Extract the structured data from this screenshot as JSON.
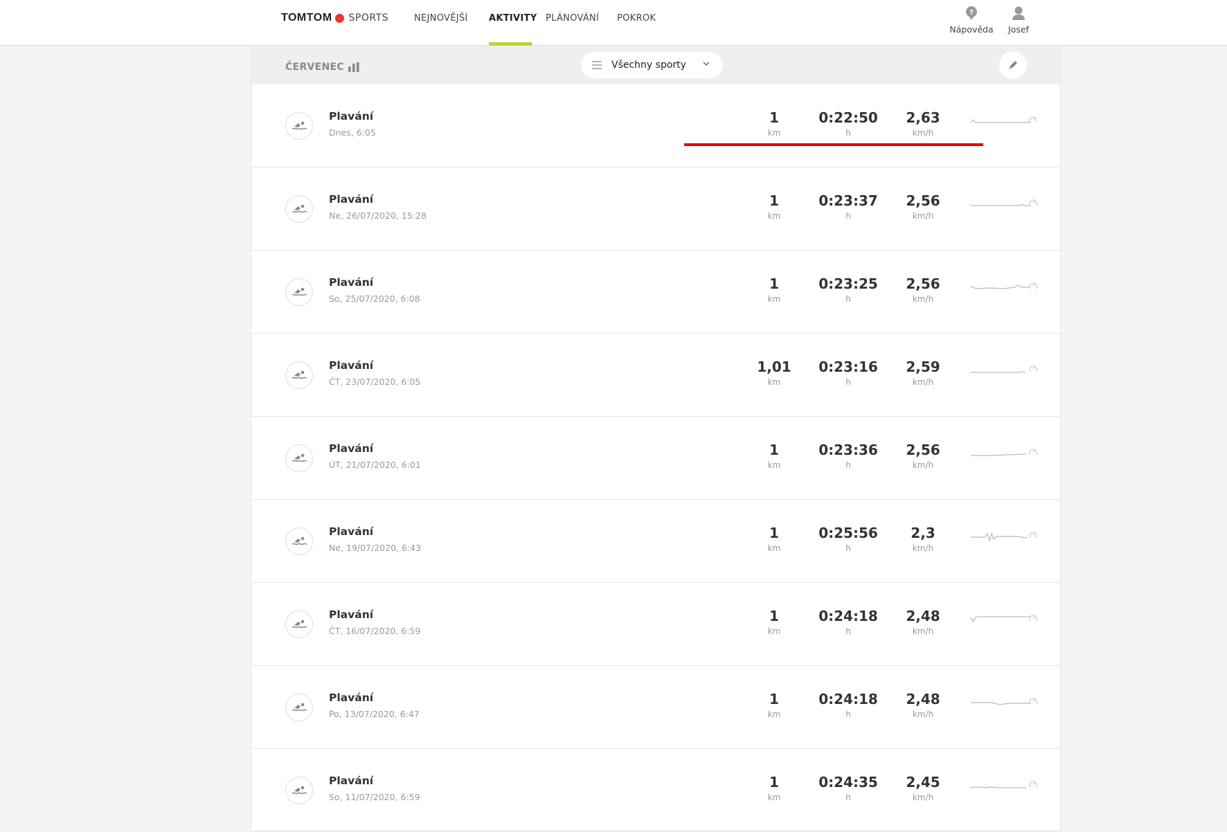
{
  "header": {
    "logo_brand": "TOMTOM",
    "logo_product": "SPORTS",
    "nav": [
      {
        "label": "NEJNOVĚJŠÍ"
      },
      {
        "label": "AKTIVITY",
        "active": true
      },
      {
        "label": "PLÁNOVÁNÍ"
      },
      {
        "label": "POKROK"
      }
    ],
    "help_label": "Nápověda",
    "user_label": "Josef",
    "accent_color": "#b7d432"
  },
  "toolbar": {
    "month": "ČERVENEC",
    "filter": "Všechny sporty"
  },
  "activities": [
    {
      "title": "Plavání",
      "date": "Dnes, 6:05",
      "distance": "1",
      "distance_unit": "km",
      "duration": "0:22:50",
      "duration_unit": "h",
      "speed": "2,63",
      "speed_unit": "km/h",
      "highlighted": true
    },
    {
      "title": "Plavání",
      "date": "Ne, 26/07/2020, 15:28",
      "distance": "1",
      "distance_unit": "km",
      "duration": "0:23:37",
      "duration_unit": "h",
      "speed": "2,56",
      "speed_unit": "km/h"
    },
    {
      "title": "Plavání",
      "date": "So, 25/07/2020, 6:08",
      "distance": "1",
      "distance_unit": "km",
      "duration": "0:23:25",
      "duration_unit": "h",
      "speed": "2,56",
      "speed_unit": "km/h"
    },
    {
      "title": "Plavání",
      "date": "ČT, 23/07/2020, 6:05",
      "distance": "1,01",
      "distance_unit": "km",
      "duration": "0:23:16",
      "duration_unit": "h",
      "speed": "2,59",
      "speed_unit": "km/h"
    },
    {
      "title": "Plavání",
      "date": "ÚT, 21/07/2020, 6:01",
      "distance": "1",
      "distance_unit": "km",
      "duration": "0:23:36",
      "duration_unit": "h",
      "speed": "2,56",
      "speed_unit": "km/h"
    },
    {
      "title": "Plavání",
      "date": "Ne, 19/07/2020, 6:43",
      "distance": "1",
      "distance_unit": "km",
      "duration": "0:25:56",
      "duration_unit": "h",
      "speed": "2,3",
      "speed_unit": "km/h"
    },
    {
      "title": "Plavání",
      "date": "ČT, 16/07/2020, 6:59",
      "distance": "1",
      "distance_unit": "km",
      "duration": "0:24:18",
      "duration_unit": "h",
      "speed": "2,48",
      "speed_unit": "km/h"
    },
    {
      "title": "Plavání",
      "date": "Po, 13/07/2020, 6:47",
      "distance": "1",
      "distance_unit": "km",
      "duration": "0:24:18",
      "duration_unit": "h",
      "speed": "2,48",
      "speed_unit": "km/h"
    },
    {
      "title": "Plavání",
      "date": "So, 11/07/2020, 6:59",
      "distance": "1",
      "distance_unit": "km",
      "duration": "0:24:35",
      "duration_unit": "h",
      "speed": "2,45",
      "speed_unit": "km/h"
    }
  ]
}
